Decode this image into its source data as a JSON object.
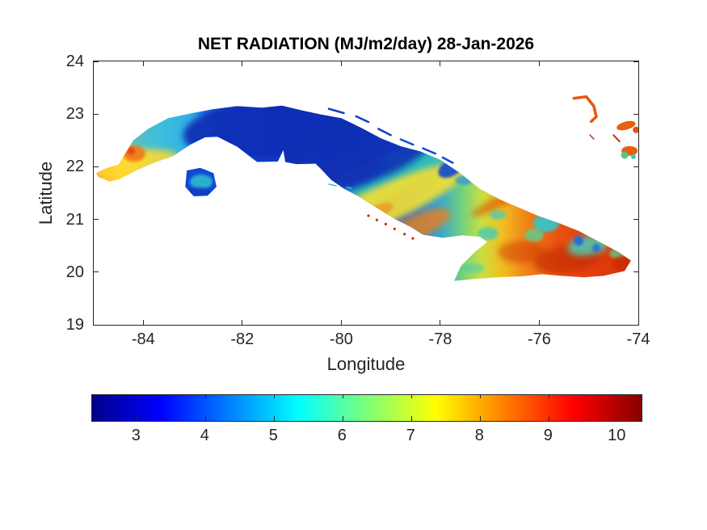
{
  "figure": {
    "background": "#ffffff",
    "title": "NET RADIATION (MJ/m2/day) 28-Jan-2026",
    "axis_color": "#262626",
    "text_color": "#262626"
  },
  "chart_data": {
    "type": "heatmap",
    "title": "NET RADIATION (MJ/m2/day) 28-Jan-2026",
    "variable": "Net radiation",
    "units": "MJ/m2/day",
    "date": "28-Jan-2026",
    "region": "Cuba and nearby islands",
    "xlabel": "Longitude",
    "ylabel": "Latitude",
    "xlim": [
      -85,
      -74
    ],
    "ylim": [
      19,
      24
    ],
    "x_ticks": [
      -84,
      -82,
      -80,
      -78,
      -76,
      -74
    ],
    "y_ticks": [
      24,
      23,
      22,
      21,
      20,
      19
    ],
    "grid": false,
    "background_sea": "no data (white)",
    "colormap": "jet",
    "colormap_stops": [
      [
        0,
        "#000089"
      ],
      [
        0.125,
        "#0000ff"
      ],
      [
        0.375,
        "#00ffff"
      ],
      [
        0.5,
        "#7dff7a"
      ],
      [
        0.625,
        "#ffff00"
      ],
      [
        0.875,
        "#ff0000"
      ],
      [
        1,
        "#890000"
      ]
    ],
    "colorbar": {
      "orientation": "horizontal",
      "position": "bottom",
      "ticks": [
        3,
        4,
        5,
        6,
        7,
        8,
        9,
        10
      ],
      "range_estimate": [
        2.35,
        10.35
      ]
    },
    "representative_points": [
      {
        "lon": -84.9,
        "lat": 21.9,
        "value": 8.5
      },
      {
        "lon": -84.4,
        "lat": 22.1,
        "value": 7.5
      },
      {
        "lon": -84.2,
        "lat": 22.25,
        "value": 8.2
      },
      {
        "lon": -84.0,
        "lat": 22.0,
        "value": 7.0
      },
      {
        "lon": -83.8,
        "lat": 22.5,
        "value": 5.0
      },
      {
        "lon": -83.3,
        "lat": 22.6,
        "value": 4.2
      },
      {
        "lon": -82.9,
        "lat": 23.0,
        "value": 3.5
      },
      {
        "lon": -82.2,
        "lat": 22.9,
        "value": 3.0
      },
      {
        "lon": -81.3,
        "lat": 22.8,
        "value": 2.8
      },
      {
        "lon": -80.5,
        "lat": 22.8,
        "value": 2.6
      },
      {
        "lon": -79.8,
        "lat": 22.4,
        "value": 2.7
      },
      {
        "lon": -82.9,
        "lat": 21.7,
        "value": 3.6
      },
      {
        "lon": -80.1,
        "lat": 21.9,
        "value": 3.3
      },
      {
        "lon": -79.9,
        "lat": 21.55,
        "value": 5.5
      },
      {
        "lon": -79.3,
        "lat": 21.2,
        "value": 7.2
      },
      {
        "lon": -78.6,
        "lat": 20.9,
        "value": 8.0
      },
      {
        "lon": -78.2,
        "lat": 21.6,
        "value": 6.0
      },
      {
        "lon": -77.8,
        "lat": 21.95,
        "value": 3.8
      },
      {
        "lon": -77.2,
        "lat": 20.9,
        "value": 8.8
      },
      {
        "lon": -76.6,
        "lat": 20.5,
        "value": 9.5
      },
      {
        "lon": -76.0,
        "lat": 20.9,
        "value": 5.8
      },
      {
        "lon": -75.8,
        "lat": 20.2,
        "value": 9.8
      },
      {
        "lon": -75.0,
        "lat": 20.5,
        "value": 6.2
      },
      {
        "lon": -74.5,
        "lat": 20.35,
        "value": 8.5
      },
      {
        "lon": -74.2,
        "lat": 20.25,
        "value": 9.0
      },
      {
        "lon": -75.1,
        "lat": 23.2,
        "value": 9.0
      },
      {
        "lon": -74.2,
        "lat": 22.7,
        "value": 9.0
      },
      {
        "lon": -74.2,
        "lat": 22.3,
        "value": 7.5
      }
    ],
    "pattern_summary": [
      "Western tip (Guanahacabibes) orange-yellow ~7.5-9",
      "Pinar del Rio: cyan to the north, yellow-green south with orange spot near (-84.2, 22.25)",
      "Central-north Cuba (Havana to Ciego de Avila): dark blue minimum ~2.5-3.5",
      "Isla de la Juventud blue with cyan center ~3-4.5",
      "South-central band (Cienfuegos-Trinidad-Camaguey): green to yellow ~5.5-7.5",
      "Eastern Cuba (Granma-Holguin-Guantanamo): red-orange ~8.5-10.4 with scattered cyan-green patches ~5-6",
      "Small Bahamas islands at top right orange-red ~9",
      "Jardines de la Reina cays: tiny red specks ~9"
    ]
  }
}
